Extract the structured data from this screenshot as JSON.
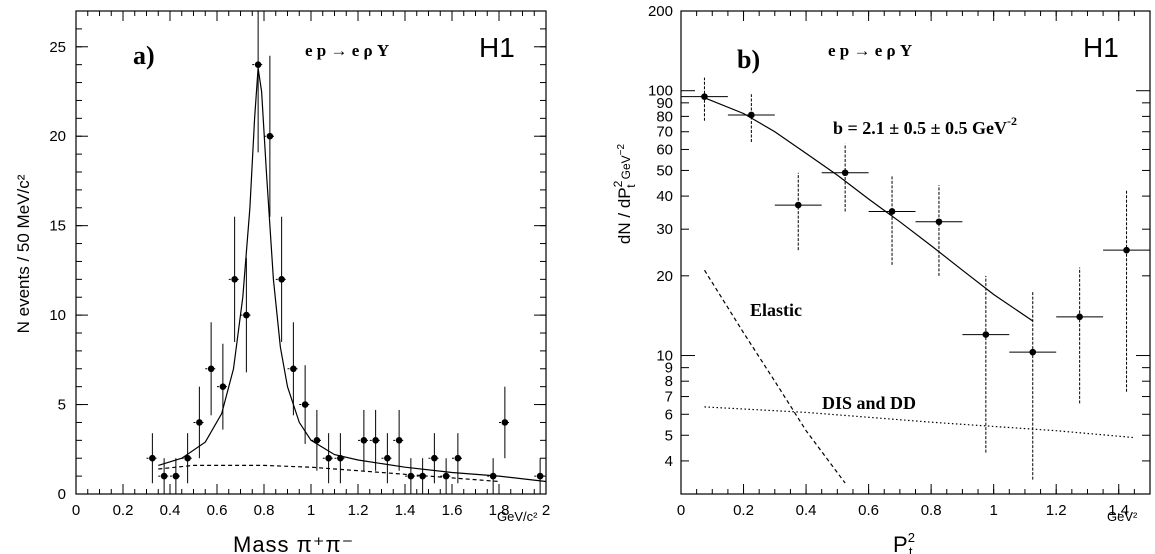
{
  "chart_data": [
    {
      "type": "scatter",
      "panel_label": "a)",
      "process_label": "e p → e ρ Y",
      "experiment_label": "H1",
      "xlabel": "Mass π⁺π⁻",
      "ylabel": "N events / 50 MeV/c²",
      "x_unit": "GeV/c²",
      "xlim": [
        0,
        2
      ],
      "ylim": [
        0,
        27
      ],
      "x_ticks": [
        "0",
        "0.2",
        "0.4",
        "0.6",
        "0.8",
        "1",
        "1.2",
        "1.4",
        "1.6",
        "1.8",
        "2"
      ],
      "y_ticks": [
        "0",
        "5",
        "10",
        "15",
        "20",
        "25"
      ],
      "points": [
        {
          "x": 0.325,
          "y": 2,
          "err": 1.4
        },
        {
          "x": 0.375,
          "y": 1,
          "err": 1.0
        },
        {
          "x": 0.425,
          "y": 1,
          "err": 1.0
        },
        {
          "x": 0.475,
          "y": 2,
          "err": 1.4
        },
        {
          "x": 0.525,
          "y": 4,
          "err": 2.0
        },
        {
          "x": 0.575,
          "y": 7,
          "err": 2.6
        },
        {
          "x": 0.625,
          "y": 6,
          "err": 2.4
        },
        {
          "x": 0.675,
          "y": 12,
          "err": 3.5
        },
        {
          "x": 0.725,
          "y": 10,
          "err": 3.2
        },
        {
          "x": 0.775,
          "y": 24,
          "err": 4.9
        },
        {
          "x": 0.825,
          "y": 20,
          "err": 4.5
        },
        {
          "x": 0.875,
          "y": 12,
          "err": 3.5
        },
        {
          "x": 0.925,
          "y": 7,
          "err": 2.6
        },
        {
          "x": 0.975,
          "y": 5,
          "err": 2.2
        },
        {
          "x": 1.025,
          "y": 3,
          "err": 1.7
        },
        {
          "x": 1.075,
          "y": 2,
          "err": 1.4
        },
        {
          "x": 1.125,
          "y": 2,
          "err": 1.4
        },
        {
          "x": 1.225,
          "y": 3,
          "err": 1.7
        },
        {
          "x": 1.275,
          "y": 3,
          "err": 1.7
        },
        {
          "x": 1.325,
          "y": 2,
          "err": 1.4
        },
        {
          "x": 1.375,
          "y": 3,
          "err": 1.7
        },
        {
          "x": 1.425,
          "y": 1,
          "err": 1.0
        },
        {
          "x": 1.475,
          "y": 1,
          "err": 1.0
        },
        {
          "x": 1.525,
          "y": 2,
          "err": 1.4
        },
        {
          "x": 1.575,
          "y": 1,
          "err": 1.0
        },
        {
          "x": 1.625,
          "y": 2,
          "err": 1.4
        },
        {
          "x": 1.775,
          "y": 1,
          "err": 1.0
        },
        {
          "x": 1.825,
          "y": 4,
          "err": 2.0
        },
        {
          "x": 1.975,
          "y": 1,
          "err": 1.0
        }
      ],
      "fit_curve": [
        [
          0.35,
          1.6
        ],
        [
          0.45,
          2.0
        ],
        [
          0.55,
          2.9
        ],
        [
          0.62,
          4.5
        ],
        [
          0.67,
          7.0
        ],
        [
          0.71,
          11.0
        ],
        [
          0.74,
          16.0
        ],
        [
          0.76,
          21.0
        ],
        [
          0.775,
          23.8
        ],
        [
          0.79,
          22.5
        ],
        [
          0.81,
          18.0
        ],
        [
          0.84,
          12.0
        ],
        [
          0.87,
          8.2
        ],
        [
          0.9,
          6.0
        ],
        [
          0.95,
          4.0
        ],
        [
          1.0,
          3.0
        ],
        [
          1.1,
          2.2
        ],
        [
          1.2,
          1.9
        ],
        [
          1.4,
          1.5
        ],
        [
          1.6,
          1.2
        ],
        [
          1.8,
          1.0
        ],
        [
          2.0,
          0.7
        ]
      ],
      "background_curve": [
        [
          0.35,
          1.4
        ],
        [
          0.5,
          1.6
        ],
        [
          0.8,
          1.6
        ],
        [
          1.0,
          1.5
        ],
        [
          1.2,
          1.3
        ],
        [
          1.4,
          1.1
        ],
        [
          1.6,
          0.9
        ],
        [
          1.8,
          0.7
        ]
      ]
    },
    {
      "type": "scatter",
      "panel_label": "b)",
      "process_label": "e p → e ρ Y",
      "experiment_label": "H1",
      "xlabel": "P",
      "xlabel_sup": "2",
      "xlabel_sub": "t",
      "ylabel": "dN / dP",
      "ylabel_sup": "2",
      "ylabel_sub": "t",
      "y_unit": "GeV",
      "y_unit_sup": "−2",
      "x_unit": "GeV²",
      "y_scale": "log",
      "xlim": [
        0,
        1.5
      ],
      "ylim": [
        3,
        200
      ],
      "x_ticks": [
        "0",
        "0.2",
        "0.4",
        "0.6",
        "0.8",
        "1",
        "1.2",
        "1.4"
      ],
      "y_tick_values": [
        4,
        5,
        6,
        7,
        8,
        9,
        10,
        20,
        30,
        40,
        50,
        60,
        70,
        80,
        90,
        100,
        200
      ],
      "y_ticks": [
        "4",
        "5",
        "6",
        "7",
        "8",
        "9",
        "10",
        "20",
        "30",
        "40",
        "50",
        "60",
        "70",
        "80",
        "90",
        "100",
        "200"
      ],
      "slope_annotation": "b = 2.1 ± 0.5 ± 0.5 GeV",
      "slope_annotation_sup": "-2",
      "curve_labels": [
        "Elastic",
        "DIS and DD"
      ],
      "points": [
        {
          "x": 0.075,
          "y": 95,
          "xerr": 0.075,
          "ylo": 77,
          "yhi": 112
        },
        {
          "x": 0.225,
          "y": 81,
          "xerr": 0.075,
          "ylo": 64,
          "yhi": 97
        },
        {
          "x": 0.375,
          "y": 37,
          "xerr": 0.075,
          "ylo": 25,
          "yhi": 49
        },
        {
          "x": 0.525,
          "y": 49,
          "xerr": 0.075,
          "ylo": 35,
          "yhi": 63
        },
        {
          "x": 0.675,
          "y": 35,
          "xerr": 0.075,
          "ylo": 22,
          "yhi": 48
        },
        {
          "x": 0.825,
          "y": 32,
          "xerr": 0.075,
          "ylo": 20,
          "yhi": 44
        },
        {
          "x": 0.975,
          "y": 12,
          "xerr": 0.075,
          "ylo": 4.3,
          "yhi": 20
        },
        {
          "x": 1.125,
          "y": 10.3,
          "xerr": 0.075,
          "ylo": 3.4,
          "yhi": 17.5
        },
        {
          "x": 1.275,
          "y": 14,
          "xerr": 0.075,
          "ylo": 6.6,
          "yhi": 21.5
        },
        {
          "x": 1.425,
          "y": 25,
          "xerr": 0.075,
          "ylo": 7.3,
          "yhi": 42
        }
      ],
      "fit_curve": [
        [
          0.075,
          94
        ],
        [
          0.2,
          82
        ],
        [
          0.3,
          70
        ],
        [
          0.4,
          58
        ],
        [
          0.5,
          48
        ],
        [
          0.6,
          39
        ],
        [
          0.7,
          32
        ],
        [
          0.8,
          26
        ],
        [
          0.9,
          21
        ],
        [
          1.0,
          17
        ],
        [
          1.125,
          13.5
        ]
      ],
      "elastic_curve": [
        [
          0.075,
          21
        ],
        [
          0.2,
          12.2
        ],
        [
          0.3,
          8.0
        ],
        [
          0.4,
          5.2
        ],
        [
          0.525,
          3.3
        ]
      ],
      "dis_dd_curve": [
        [
          0.075,
          6.4
        ],
        [
          0.4,
          6.1
        ],
        [
          0.8,
          5.6
        ],
        [
          1.2,
          5.2
        ],
        [
          1.45,
          4.9
        ]
      ]
    }
  ]
}
